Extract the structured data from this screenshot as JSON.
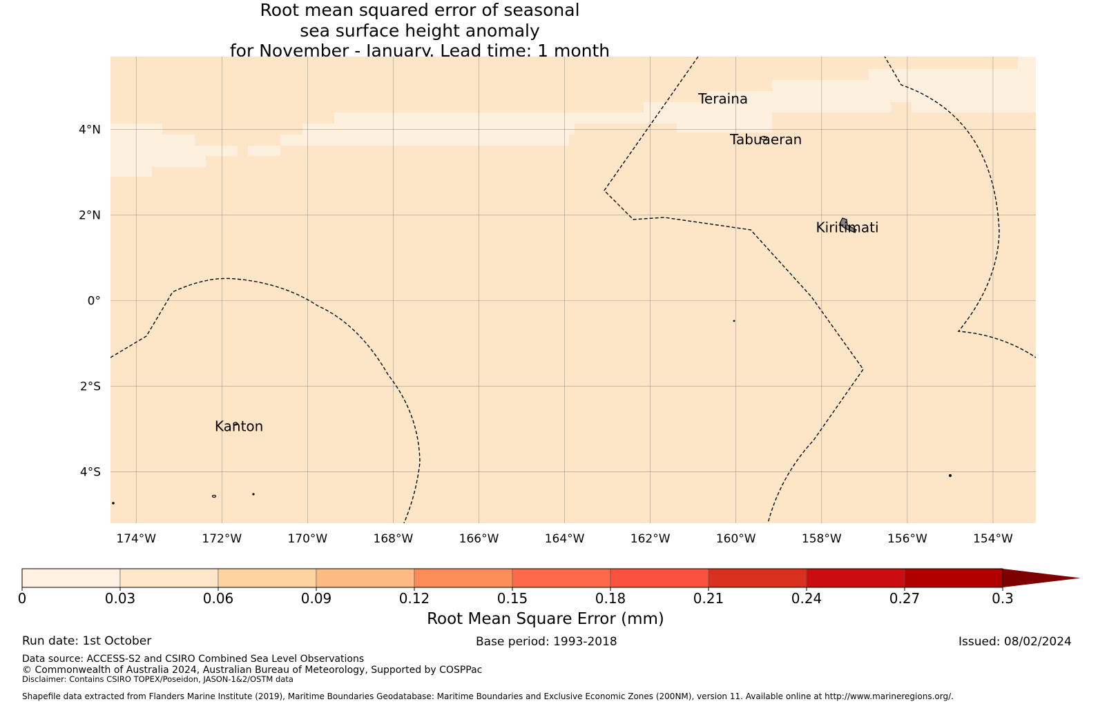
{
  "title": {
    "line1": "Root mean squared error of seasonal",
    "line2": "sea surface height anomaly",
    "line3": "for November - January. Lead time: 1 month"
  },
  "map": {
    "lon_range": [
      -174.6,
      -153.0
    ],
    "lat_range": [
      -5.2,
      5.7
    ],
    "lon_ticks": [
      {
        "value": -174,
        "label": "174°W"
      },
      {
        "value": -172,
        "label": "172°W"
      },
      {
        "value": -170,
        "label": "170°W"
      },
      {
        "value": -168,
        "label": "168°W"
      },
      {
        "value": -166,
        "label": "166°W"
      },
      {
        "value": -164,
        "label": "164°W"
      },
      {
        "value": -162,
        "label": "162°W"
      },
      {
        "value": -160,
        "label": "160°W"
      },
      {
        "value": -158,
        "label": "158°W"
      },
      {
        "value": -156,
        "label": "156°W"
      },
      {
        "value": -154,
        "label": "154°W"
      }
    ],
    "lat_ticks": [
      {
        "value": 4,
        "label": "4°N"
      },
      {
        "value": 2,
        "label": "2°N"
      },
      {
        "value": 0,
        "label": "0°"
      },
      {
        "value": -2,
        "label": "2°S"
      },
      {
        "value": -4,
        "label": "4°S"
      }
    ],
    "background_band": "0.03 - 0.06",
    "places": [
      {
        "name": "Teraina",
        "lon": -160.3,
        "lat": 4.6
      },
      {
        "name": "Tabuaeran",
        "lon": -159.3,
        "lat": 3.65
      },
      {
        "name": "Kiritimati",
        "lon": -157.4,
        "lat": 1.6
      },
      {
        "name": "Kanton",
        "lon": -171.6,
        "lat": -3.05
      }
    ],
    "colors": {
      "band_low": "#fef0de",
      "band_mid": "#fde6c8",
      "coast": "#000000",
      "land": "#888888"
    }
  },
  "colorbar": {
    "label": "Root Mean Square Error (mm)",
    "ticks": [
      "0",
      "0.03",
      "0.06",
      "0.09",
      "0.12",
      "0.15",
      "0.18",
      "0.21",
      "0.24",
      "0.27",
      "0.3"
    ],
    "colors": [
      "#fff2e2",
      "#fde6ca",
      "#fdd39f",
      "#fdbb84",
      "#fc8d59",
      "#fc6a4a",
      "#fb5140",
      "#d7301f",
      "#c90d10",
      "#b00000"
    ],
    "extend_color": "#7f0000"
  },
  "info": {
    "run_date": "Run date: 1st October",
    "base_period": "Base period: 1993-2018",
    "issued": "Issued: 08/02/2024",
    "data_source": "Data source: ACCESS-S2 and CSIRO Combined Sea Level Observations",
    "copyright": "© Commonwealth of Australia 2024, Australian Bureau of Meteorology, Supported by COSPPac",
    "disclaimer": "Disclaimer: Contains CSIRO TOPEX/Poseidon, JASON-1&2/OSTM data",
    "shapefile": "Shapefile data extracted from Flanders Marine Institute (2019), Maritime Boundaries Geodatabase: Maritime Boundaries and Exclusive Economic Zones (200NM), version 11. Available online at http://www.marineregions.org/."
  }
}
